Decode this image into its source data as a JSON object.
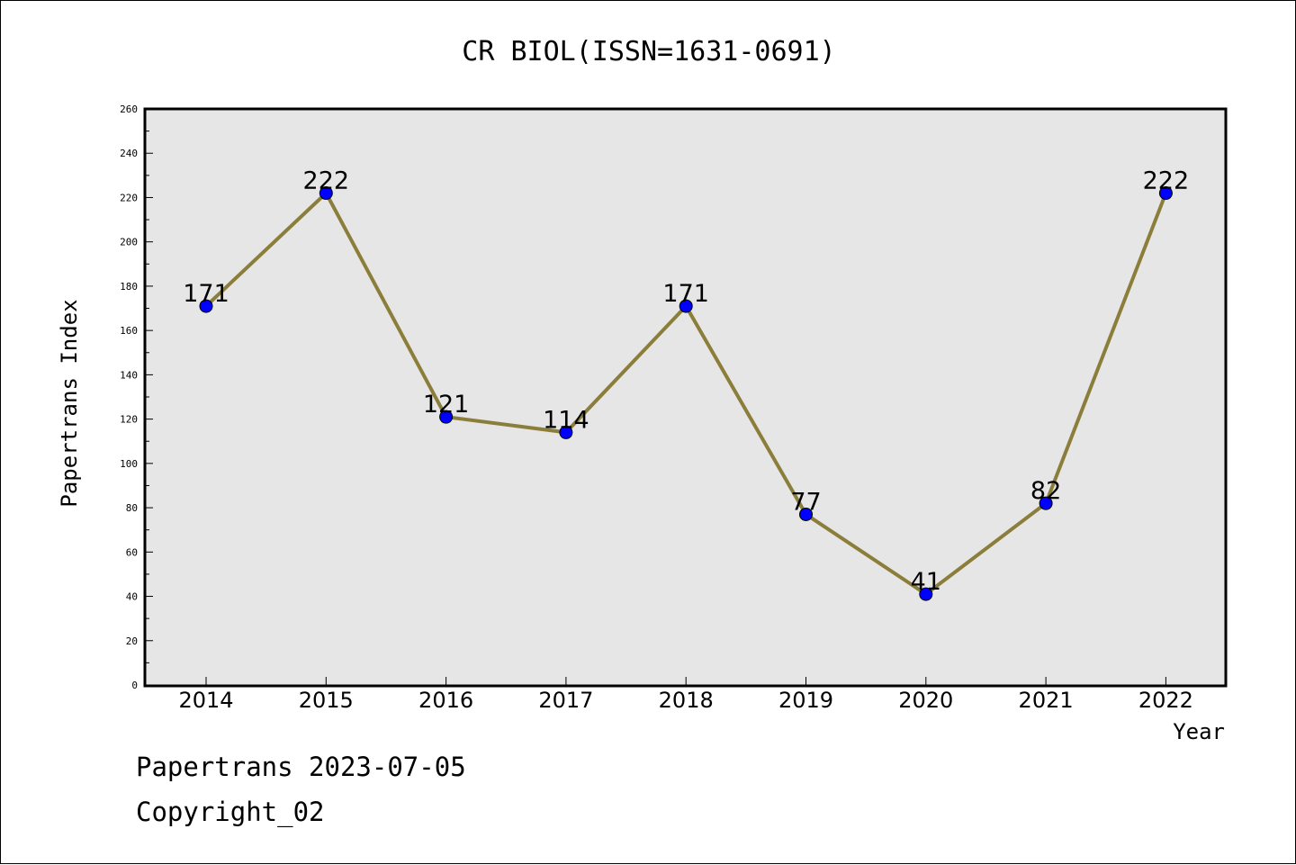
{
  "chart_data": {
    "type": "line",
    "title": "CR BIOL(ISSN=1631-0691)",
    "xlabel": "Year",
    "ylabel": "Papertrans Index",
    "categories": [
      "2014",
      "2015",
      "2016",
      "2017",
      "2018",
      "2019",
      "2020",
      "2021",
      "2022"
    ],
    "series": [
      {
        "values": [
          171,
          222,
          121,
          114,
          171,
          77,
          41,
          82,
          222
        ]
      }
    ],
    "data_labels": [
      "171",
      "222",
      "121",
      "114",
      "171",
      "77",
      "41",
      "82",
      "222"
    ],
    "ylim": [
      0,
      260
    ],
    "y_ticks": [
      0,
      20,
      40,
      60,
      80,
      100,
      120,
      140,
      160,
      180,
      200,
      220,
      240,
      260
    ],
    "grid": false,
    "colors": {
      "line": "#8b7d3a",
      "marker": "#0000ff",
      "plot_background": "#e6e6e6"
    }
  },
  "footer": {
    "date_line": "Papertrans 2023-07-05",
    "copyright_line": "Copyright_02"
  }
}
